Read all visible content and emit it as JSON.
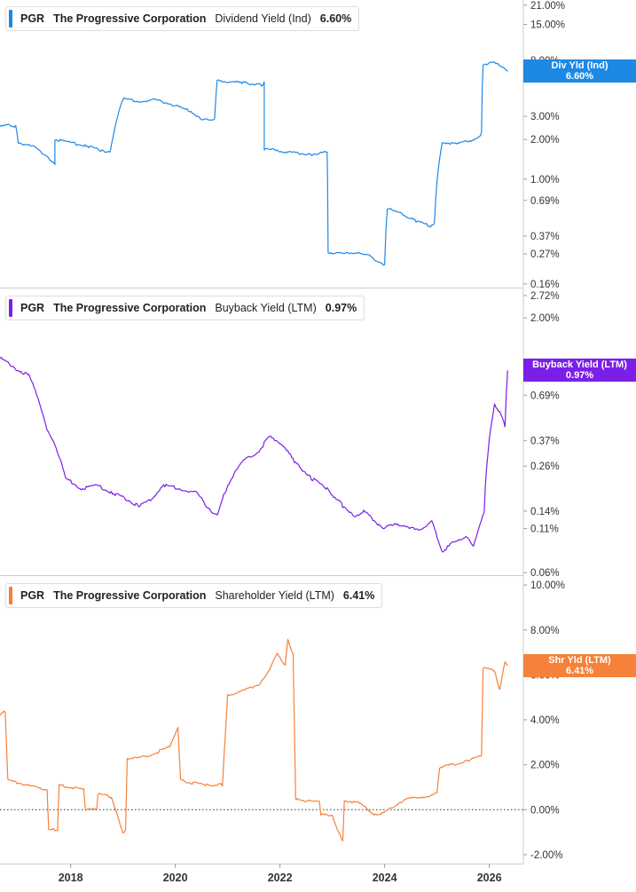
{
  "colors": {
    "dividend": "#1e88e5",
    "buyback": "#7b1fe8",
    "shareholder": "#f5813a",
    "divider": "#cccccc",
    "tick_text": "#333333"
  },
  "panels": [
    {
      "ticker": "PGR",
      "company": "The Progressive Corporation",
      "metric": "Dividend Yield (Ind)",
      "value": "6.60%",
      "badge_label": "Div Yld (Ind)",
      "badge_value": "6.60%"
    },
    {
      "ticker": "PGR",
      "company": "The Progressive Corporation",
      "metric": "Buyback Yield (LTM)",
      "value": "0.97%",
      "badge_label": "Buyback Yield (LTM)",
      "badge_value": "0.97%"
    },
    {
      "ticker": "PGR",
      "company": "The Progressive Corporation",
      "metric": "Shareholder Yield (LTM)",
      "value": "6.41%",
      "badge_label": "Shr Yld (LTM)",
      "badge_value": "6.41%"
    }
  ],
  "x_axis": {
    "labels": [
      "2018",
      "2020",
      "2022",
      "2024",
      "2026"
    ]
  },
  "chart_data": [
    {
      "type": "line",
      "title": "PGR The Progressive Corporation Dividend Yield (Ind)",
      "yscale": "log",
      "ylim": [
        0.15,
        23
      ],
      "yticks": [
        "21.00%",
        "15.00%",
        "8.00%",
        "6.00%",
        "3.00%",
        "2.00%",
        "1.00%",
        "0.69%",
        "0.37%",
        "0.27%",
        "0.16%"
      ],
      "ytick_values": [
        21,
        15,
        8,
        6,
        3,
        2,
        1,
        0.69,
        0.37,
        0.27,
        0.16
      ],
      "xlim": [
        2016.65,
        2026.65
      ],
      "series": [
        {
          "name": "Div Yld (Ind)",
          "x": [
            2016.65,
            2016.85,
            2016.95,
            2017.0,
            2017.3,
            2017.55,
            2017.7,
            2017.7,
            2018.0,
            2018.3,
            2018.6,
            2018.75,
            2018.78,
            2019.0,
            2019.3,
            2019.6,
            2019.85,
            2020.1,
            2020.3,
            2020.5,
            2020.75,
            2020.8,
            2021.0,
            2021.3,
            2021.65,
            2021.7,
            2021.7,
            2021.95,
            2022.2,
            2022.6,
            2022.9,
            2022.92,
            2023.2,
            2023.5,
            2023.7,
            2023.95,
            2024.0,
            2024.05,
            2024.3,
            2024.6,
            2024.9,
            2024.95,
            2025.1,
            2025.4,
            2025.7,
            2025.85,
            2025.88,
            2026.1,
            2026.3,
            2026.35
          ],
          "values": [
            2.5,
            2.6,
            2.5,
            1.9,
            1.75,
            1.5,
            1.28,
            2.0,
            1.9,
            1.8,
            1.65,
            1.62,
            1.8,
            4.1,
            3.9,
            4.0,
            3.8,
            3.5,
            3.3,
            2.8,
            2.9,
            5.6,
            5.5,
            5.4,
            5.2,
            5.4,
            1.7,
            1.65,
            1.6,
            1.55,
            1.6,
            0.28,
            0.27,
            0.28,
            0.26,
            0.23,
            0.22,
            0.6,
            0.55,
            0.48,
            0.44,
            0.46,
            1.9,
            1.85,
            2.0,
            2.2,
            7.5,
            7.6,
            7.0,
            6.6
          ]
        }
      ]
    },
    {
      "type": "line",
      "title": "PGR The Progressive Corporation Buyback Yield (LTM)",
      "yscale": "log",
      "ylim": [
        0.058,
        3.0
      ],
      "yticks": [
        "2.72%",
        "2.00%",
        "0.69%",
        "0.37%",
        "0.26%",
        "0.14%",
        "0.11%",
        "0.06%"
      ],
      "ytick_values": [
        2.72,
        2.0,
        0.69,
        0.37,
        0.26,
        0.14,
        0.11,
        0.06
      ],
      "xlim": [
        2016.65,
        2026.65
      ],
      "series": [
        {
          "name": "Buyback Yield (LTM)",
          "x": [
            2016.65,
            2016.95,
            2017.2,
            2017.35,
            2017.55,
            2017.7,
            2017.9,
            2018.2,
            2018.5,
            2018.8,
            2019.0,
            2019.3,
            2019.5,
            2019.8,
            2020.1,
            2020.4,
            2020.6,
            2020.8,
            2021.0,
            2021.3,
            2021.6,
            2021.8,
            2022.0,
            2022.3,
            2022.6,
            2022.9,
            2023.2,
            2023.4,
            2023.6,
            2023.85,
            2024.0,
            2024.2,
            2024.45,
            2024.7,
            2024.9,
            2025.1,
            2025.3,
            2025.55,
            2025.7,
            2025.9,
            2026.1,
            2026.2,
            2026.3,
            2026.35
          ],
          "values": [
            1.15,
            1.0,
            0.9,
            0.7,
            0.42,
            0.35,
            0.22,
            0.19,
            0.2,
            0.18,
            0.17,
            0.15,
            0.16,
            0.2,
            0.19,
            0.18,
            0.15,
            0.13,
            0.2,
            0.28,
            0.32,
            0.39,
            0.36,
            0.27,
            0.22,
            0.19,
            0.15,
            0.13,
            0.14,
            0.12,
            0.11,
            0.12,
            0.11,
            0.11,
            0.12,
            0.08,
            0.09,
            0.1,
            0.085,
            0.14,
            0.6,
            0.55,
            0.45,
            0.97
          ]
        }
      ]
    },
    {
      "type": "line",
      "title": "PGR The Progressive Corporation Shareholder Yield (LTM)",
      "yscale": "linear",
      "ylim": [
        -2.4,
        10.4
      ],
      "yticks": [
        "10.00%",
        "8.00%",
        "6.00%",
        "4.00%",
        "2.00%",
        "0.00%",
        "-2.00%"
      ],
      "ytick_values": [
        10,
        8,
        6,
        4,
        2,
        0,
        -2
      ],
      "zero_line": true,
      "xlim": [
        2016.65,
        2026.65
      ],
      "series": [
        {
          "name": "Shr Yld (LTM)",
          "x": [
            2016.65,
            2016.75,
            2016.8,
            2017.0,
            2017.3,
            2017.55,
            2017.58,
            2017.75,
            2017.78,
            2018.0,
            2018.25,
            2018.28,
            2018.5,
            2018.52,
            2018.75,
            2018.78,
            2019.0,
            2019.05,
            2019.08,
            2019.3,
            2019.6,
            2019.9,
            2020.05,
            2020.1,
            2020.3,
            2020.6,
            2020.9,
            2021.0,
            2021.3,
            2021.6,
            2021.8,
            2021.95,
            2022.1,
            2022.15,
            2022.25,
            2022.3,
            2022.33,
            2022.5,
            2022.75,
            2022.78,
            2023.0,
            2023.2,
            2023.23,
            2023.5,
            2023.8,
            2024.0,
            2024.25,
            2024.5,
            2024.8,
            2025.0,
            2025.05,
            2025.3,
            2025.6,
            2025.85,
            2025.88,
            2026.1,
            2026.2,
            2026.3,
            2026.35
          ],
          "values": [
            4.2,
            4.4,
            1.3,
            1.2,
            1.0,
            0.9,
            -0.9,
            -0.9,
            1.1,
            1.0,
            0.9,
            0.0,
            0.0,
            0.7,
            0.6,
            0.5,
            -1.0,
            -0.95,
            2.3,
            2.3,
            2.5,
            2.8,
            3.7,
            1.3,
            1.2,
            1.1,
            1.1,
            5.1,
            5.3,
            5.6,
            6.2,
            7.0,
            6.4,
            7.6,
            6.9,
            0.5,
            0.45,
            0.4,
            0.35,
            -0.2,
            -0.3,
            -1.4,
            0.4,
            0.3,
            -0.2,
            -0.15,
            0.3,
            0.5,
            0.6,
            0.7,
            1.9,
            2.0,
            2.2,
            2.4,
            6.3,
            6.2,
            5.3,
            6.6,
            6.41
          ]
        }
      ]
    }
  ]
}
